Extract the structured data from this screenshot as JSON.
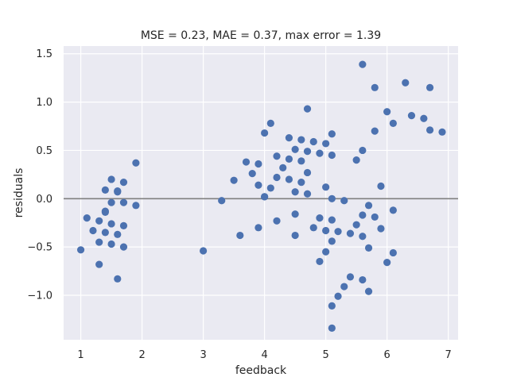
{
  "chart_data": {
    "type": "scatter",
    "title": "MSE = 0.23, MAE = 0.37, max error = 1.39",
    "xlabel": "feedback",
    "ylabel": "residuals",
    "xlim": [
      0.72,
      7.16
    ],
    "ylim": [
      -1.46,
      1.58
    ],
    "xticks": [
      1,
      2,
      3,
      4,
      5,
      6,
      7
    ],
    "xtick_labels": [
      "1",
      "2",
      "3",
      "4",
      "5",
      "6",
      "7"
    ],
    "yticks": [
      -1.0,
      -0.5,
      0.0,
      0.5,
      1.0,
      1.5
    ],
    "ytick_labels": [
      "−1.0",
      "−0.5",
      "0.0",
      "0.5",
      "1.0",
      "1.5"
    ],
    "reference_line_y": 0,
    "grid": true,
    "background_color": "#eaeaf2",
    "marker_color": "#4c72b0",
    "reference_line_color": "#808080",
    "points": [
      {
        "x": 1.0,
        "y": -0.53
      },
      {
        "x": 1.1,
        "y": -0.2
      },
      {
        "x": 1.2,
        "y": -0.33
      },
      {
        "x": 1.3,
        "y": -0.23
      },
      {
        "x": 1.3,
        "y": -0.45
      },
      {
        "x": 1.3,
        "y": -0.68
      },
      {
        "x": 1.4,
        "y": 0.09
      },
      {
        "x": 1.4,
        "y": -0.13
      },
      {
        "x": 1.4,
        "y": -0.14
      },
      {
        "x": 1.4,
        "y": -0.35
      },
      {
        "x": 1.5,
        "y": 0.2
      },
      {
        "x": 1.5,
        "y": -0.04
      },
      {
        "x": 1.5,
        "y": -0.26
      },
      {
        "x": 1.5,
        "y": -0.47
      },
      {
        "x": 1.6,
        "y": 0.07
      },
      {
        "x": 1.6,
        "y": 0.08
      },
      {
        "x": 1.6,
        "y": -0.37
      },
      {
        "x": 1.6,
        "y": -0.83
      },
      {
        "x": 1.7,
        "y": 0.17
      },
      {
        "x": 1.7,
        "y": -0.04
      },
      {
        "x": 1.7,
        "y": -0.28
      },
      {
        "x": 1.7,
        "y": -0.5
      },
      {
        "x": 1.9,
        "y": 0.37
      },
      {
        "x": 1.9,
        "y": -0.07
      },
      {
        "x": 3.0,
        "y": -0.54
      },
      {
        "x": 3.3,
        "y": -0.02
      },
      {
        "x": 3.5,
        "y": 0.19
      },
      {
        "x": 3.6,
        "y": -0.38
      },
      {
        "x": 3.7,
        "y": 0.38
      },
      {
        "x": 3.8,
        "y": 0.26
      },
      {
        "x": 3.9,
        "y": 0.36
      },
      {
        "x": 3.9,
        "y": 0.14
      },
      {
        "x": 3.9,
        "y": -0.3
      },
      {
        "x": 4.0,
        "y": 0.68
      },
      {
        "x": 4.0,
        "y": 0.02
      },
      {
        "x": 4.0,
        "y": 0.02
      },
      {
        "x": 4.1,
        "y": 0.78
      },
      {
        "x": 4.1,
        "y": 0.11
      },
      {
        "x": 4.2,
        "y": 0.44
      },
      {
        "x": 4.2,
        "y": 0.22
      },
      {
        "x": 4.2,
        "y": -0.23
      },
      {
        "x": 4.3,
        "y": 0.32
      },
      {
        "x": 4.4,
        "y": 0.63
      },
      {
        "x": 4.4,
        "y": 0.41
      },
      {
        "x": 4.4,
        "y": 0.2
      },
      {
        "x": 4.5,
        "y": 0.51
      },
      {
        "x": 4.5,
        "y": 0.07
      },
      {
        "x": 4.5,
        "y": -0.16
      },
      {
        "x": 4.5,
        "y": -0.38
      },
      {
        "x": 4.6,
        "y": 0.61
      },
      {
        "x": 4.6,
        "y": 0.39
      },
      {
        "x": 4.6,
        "y": 0.17
      },
      {
        "x": 4.7,
        "y": 0.93
      },
      {
        "x": 4.7,
        "y": 0.49
      },
      {
        "x": 4.7,
        "y": 0.27
      },
      {
        "x": 4.7,
        "y": 0.05
      },
      {
        "x": 4.8,
        "y": 0.59
      },
      {
        "x": 4.8,
        "y": -0.3
      },
      {
        "x": 4.9,
        "y": 0.47
      },
      {
        "x": 4.9,
        "y": -0.2
      },
      {
        "x": 4.9,
        "y": -0.65
      },
      {
        "x": 5.0,
        "y": 0.57
      },
      {
        "x": 5.0,
        "y": 0.12
      },
      {
        "x": 5.0,
        "y": -0.33
      },
      {
        "x": 5.0,
        "y": -0.55
      },
      {
        "x": 5.1,
        "y": 0.67
      },
      {
        "x": 5.1,
        "y": 0.45
      },
      {
        "x": 5.1,
        "y": 0.0
      },
      {
        "x": 5.1,
        "y": -0.22
      },
      {
        "x": 5.1,
        "y": -0.44
      },
      {
        "x": 5.1,
        "y": -1.11
      },
      {
        "x": 5.1,
        "y": -1.34
      },
      {
        "x": 5.2,
        "y": -0.34
      },
      {
        "x": 5.2,
        "y": -1.01
      },
      {
        "x": 5.3,
        "y": -0.02
      },
      {
        "x": 5.3,
        "y": -0.91
      },
      {
        "x": 5.4,
        "y": -0.36
      },
      {
        "x": 5.4,
        "y": -0.81
      },
      {
        "x": 5.5,
        "y": 0.4
      },
      {
        "x": 5.5,
        "y": -0.27
      },
      {
        "x": 5.6,
        "y": 1.39
      },
      {
        "x": 5.6,
        "y": 0.5
      },
      {
        "x": 5.6,
        "y": -0.17
      },
      {
        "x": 5.6,
        "y": -0.39
      },
      {
        "x": 5.6,
        "y": -0.84
      },
      {
        "x": 5.7,
        "y": -0.07
      },
      {
        "x": 5.7,
        "y": -0.51
      },
      {
        "x": 5.7,
        "y": -0.96
      },
      {
        "x": 5.8,
        "y": 1.15
      },
      {
        "x": 5.8,
        "y": 0.7
      },
      {
        "x": 5.8,
        "y": -0.19
      },
      {
        "x": 5.9,
        "y": 0.13
      },
      {
        "x": 5.9,
        "y": -0.31
      },
      {
        "x": 6.0,
        "y": 0.9
      },
      {
        "x": 6.0,
        "y": -0.66
      },
      {
        "x": 6.1,
        "y": 0.78
      },
      {
        "x": 6.1,
        "y": -0.12
      },
      {
        "x": 6.1,
        "y": -0.56
      },
      {
        "x": 6.3,
        "y": 1.2
      },
      {
        "x": 6.4,
        "y": 0.86
      },
      {
        "x": 6.6,
        "y": 0.83
      },
      {
        "x": 6.7,
        "y": 1.15
      },
      {
        "x": 6.7,
        "y": 0.71
      },
      {
        "x": 6.9,
        "y": 0.69
      }
    ]
  }
}
